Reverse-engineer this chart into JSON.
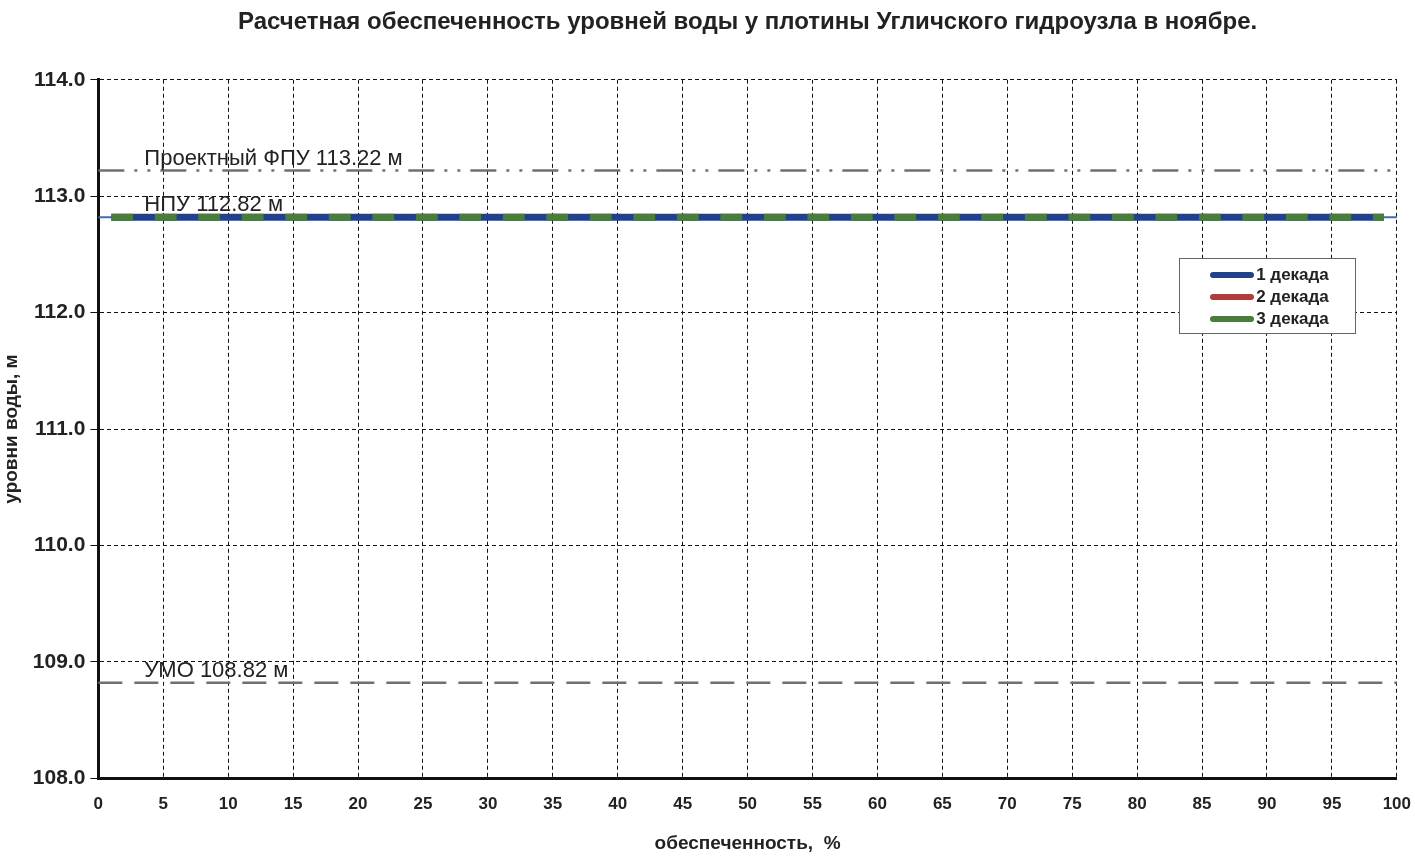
{
  "chart_data": {
    "type": "line",
    "title": "Расчетная обеспеченность уровней воды у плотины Угличского гидроузла в ноябре.",
    "xlabel": "обеспеченность,  %",
    "ylabel": "уровни воды, м",
    "x": [
      1,
      99
    ],
    "series": [
      {
        "name": "1 декада",
        "color": "#23408a",
        "values": [
          112.82,
          112.82
        ]
      },
      {
        "name": "2 декада",
        "color": "#b23c3a",
        "values": [
          null,
          null
        ]
      },
      {
        "name": "3 декада",
        "color": "#4a7d3c",
        "values": [
          112.82,
          112.82
        ],
        "line_style": "dashed"
      }
    ],
    "xlim": [
      0,
      100
    ],
    "xticks": [
      0,
      5,
      10,
      15,
      20,
      25,
      30,
      35,
      40,
      45,
      50,
      55,
      60,
      65,
      70,
      75,
      80,
      85,
      90,
      95,
      100
    ],
    "ylim": [
      108,
      114
    ],
    "yticks": [
      {
        "value": 108,
        "label": "108.0"
      },
      {
        "value": 109,
        "label": "109.0"
      },
      {
        "value": 110,
        "label": "110.0"
      },
      {
        "value": 111,
        "label": "111.0"
      },
      {
        "value": 112,
        "label": "112.0"
      },
      {
        "value": 113,
        "label": "113.0"
      },
      {
        "value": 114,
        "label": "114.0"
      }
    ],
    "ref_lines": [
      {
        "axis": "y",
        "value": 113.22,
        "label": "Проектный ФПУ 113.22 м",
        "color": "#707070",
        "line_style": "dashdot"
      },
      {
        "axis": "y",
        "value": 112.82,
        "label": "НПУ 112.82 м",
        "color": "#3d6db5",
        "line_style": "solid"
      },
      {
        "axis": "y",
        "value": 108.82,
        "label": "УМО 108.82 м",
        "color": "#707070",
        "line_style": "dashed"
      }
    ],
    "grid": true,
    "legend": "top right",
    "marker": "none",
    "line_style": "solid"
  }
}
